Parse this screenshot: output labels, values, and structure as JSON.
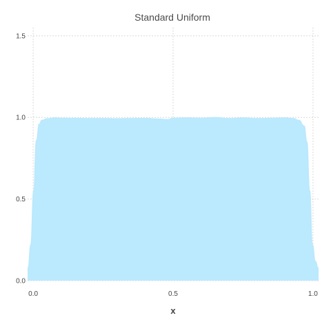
{
  "chart_data": {
    "type": "area",
    "title": "Standard Uniform",
    "xlabel": "x",
    "ylabel": "",
    "xlim": [
      -0.02,
      1.02
    ],
    "ylim": [
      0,
      1.55
    ],
    "xticks": [
      0.0,
      0.5,
      1.0
    ],
    "xtick_labels": [
      "0.0",
      "0.5",
      "1.0"
    ],
    "yticks": [
      0.0,
      0.5,
      1.0,
      1.5
    ],
    "ytick_labels": [
      "0.0",
      "0.5",
      "1.0",
      "1.5"
    ],
    "grid": true,
    "fill_color": "#bbe9fd",
    "series": [
      {
        "x": [
          -0.02,
          -0.01,
          0.0,
          0.01,
          0.02,
          0.03,
          0.05,
          0.08,
          0.1,
          0.15,
          0.2,
          0.25,
          0.3,
          0.35,
          0.4,
          0.45,
          0.48,
          0.5,
          0.55,
          0.6,
          0.65,
          0.7,
          0.75,
          0.8,
          0.85,
          0.9,
          0.93,
          0.95,
          0.97,
          0.98,
          0.99,
          1.0,
          1.01,
          1.02
        ],
        "y": [
          0.08,
          0.22,
          0.55,
          0.86,
          0.96,
          0.985,
          0.995,
          1.0,
          0.998,
          0.997,
          0.996,
          0.996,
          0.995,
          0.996,
          0.997,
          0.993,
          0.99,
          0.998,
          1.0,
          0.998,
          1.002,
          0.996,
          1.0,
          0.996,
          0.998,
          1.0,
          0.996,
          0.985,
          0.95,
          0.85,
          0.55,
          0.22,
          0.12,
          0.08
        ]
      }
    ]
  }
}
